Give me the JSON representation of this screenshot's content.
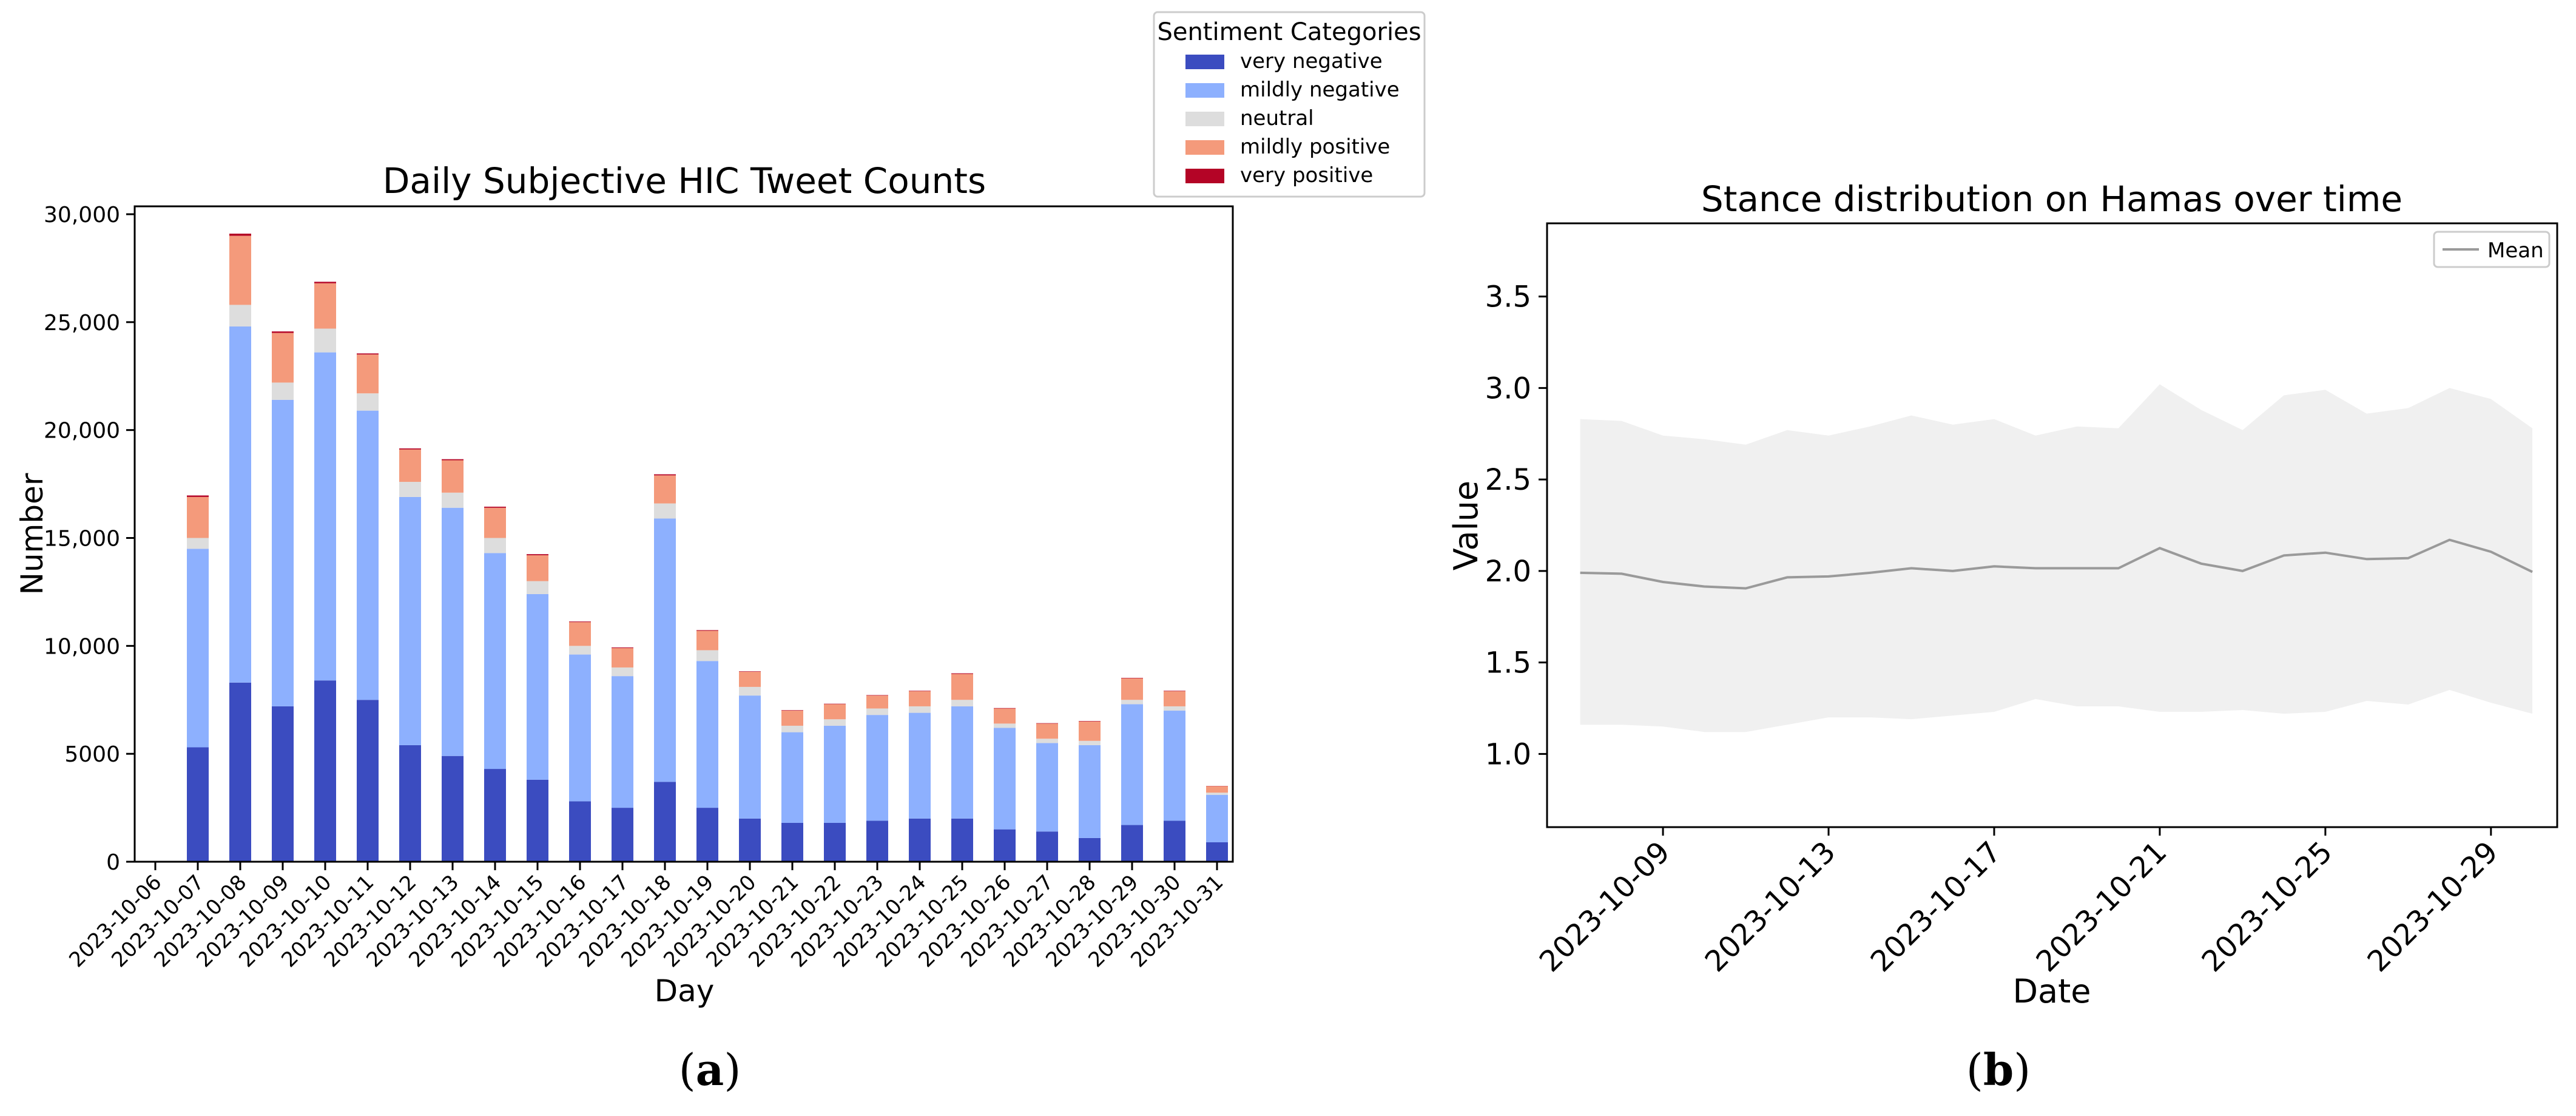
{
  "captions": {
    "a_open": "(",
    "a_letter": "a",
    "a_close": ")",
    "b_open": "(",
    "b_letter": "b",
    "b_close": ")"
  },
  "colors": {
    "very_negative": "#3b4cc0",
    "mildly_negative": "#8db0fe",
    "neutral": "#dddddd",
    "mildly_positive": "#f49a7b",
    "very_positive": "#b40426",
    "mean_line": "#9a9a9a",
    "band": "#f0f0f0"
  },
  "chart_data": [
    {
      "type": "bar",
      "stacked": true,
      "title": "Daily Subjective HIC Tweet Counts",
      "xlabel": "Day",
      "ylabel": "Number",
      "ylim": [
        0,
        30000
      ],
      "yticks": [
        "0",
        "5000",
        "10,000",
        "15,000",
        "20,000",
        "25,000",
        "30,000"
      ],
      "legend": {
        "title": "Sentiment Categories",
        "placement": "top-center-outside"
      },
      "categories": [
        "2023-10-06",
        "2023-10-07",
        "2023-10-08",
        "2023-10-09",
        "2023-10-10",
        "2023-10-11",
        "2023-10-12",
        "2023-10-13",
        "2023-10-14",
        "2023-10-15",
        "2023-10-16",
        "2023-10-17",
        "2023-10-18",
        "2023-10-19",
        "2023-10-20",
        "2023-10-21",
        "2023-10-22",
        "2023-10-23",
        "2023-10-24",
        "2023-10-25",
        "2023-10-26",
        "2023-10-27",
        "2023-10-28",
        "2023-10-29",
        "2023-10-30",
        "2023-10-31"
      ],
      "series": [
        {
          "name": "very negative",
          "color_key": "very_negative",
          "values": [
            0,
            5300,
            8300,
            7200,
            8400,
            7500,
            5400,
            4900,
            4300,
            3800,
            2800,
            2500,
            3700,
            2500,
            2000,
            1800,
            1800,
            1900,
            2000,
            2000,
            1500,
            1400,
            1100,
            1700,
            1900,
            900
          ]
        },
        {
          "name": "mildly negative",
          "color_key": "mildly_negative",
          "values": [
            0,
            9200,
            16500,
            14200,
            15200,
            13400,
            11500,
            11500,
            10000,
            8600,
            6800,
            6100,
            12200,
            6800,
            5700,
            4200,
            4500,
            4900,
            4900,
            5200,
            4700,
            4100,
            4300,
            5600,
            5100,
            2200
          ]
        },
        {
          "name": "neutral",
          "color_key": "neutral",
          "values": [
            0,
            500,
            1000,
            800,
            1100,
            800,
            700,
            700,
            700,
            600,
            400,
            400,
            700,
            500,
            400,
            300,
            300,
            300,
            300,
            300,
            200,
            200,
            200,
            200,
            200,
            100
          ]
        },
        {
          "name": "mildly positive",
          "color_key": "mildly_positive",
          "values": [
            0,
            1900,
            3200,
            2300,
            2100,
            1800,
            1500,
            1500,
            1400,
            1200,
            1100,
            900,
            1300,
            900,
            700,
            700,
            700,
            600,
            700,
            1200,
            700,
            700,
            900,
            1000,
            700,
            300
          ]
        },
        {
          "name": "very positive",
          "color_key": "very_positive",
          "values": [
            0,
            70,
            100,
            70,
            70,
            50,
            50,
            50,
            50,
            50,
            30,
            30,
            50,
            30,
            20,
            20,
            20,
            20,
            20,
            30,
            20,
            20,
            20,
            20,
            20,
            10
          ]
        }
      ]
    },
    {
      "type": "line",
      "title": "Stance distribution on Hamas over time",
      "xlabel": "Date",
      "ylabel": "Value",
      "ylim": [
        0.6,
        3.9
      ],
      "yticks": [
        "1.0",
        "1.5",
        "2.0",
        "2.5",
        "3.0",
        "3.5"
      ],
      "xticks": [
        "2023-10-09",
        "2023-10-13",
        "2023-10-17",
        "2023-10-21",
        "2023-10-25",
        "2023-10-29"
      ],
      "xtick_days": [
        9,
        13,
        17,
        21,
        25,
        29
      ],
      "xlim_days": [
        6.2,
        30.6
      ],
      "legend": {
        "placement": "top-right",
        "entries": [
          "Mean"
        ]
      },
      "series": [
        {
          "name": "Mean",
          "x_days": [
            7,
            8,
            9,
            10,
            11,
            12,
            13,
            14,
            15,
            16,
            17,
            18,
            19,
            20,
            21,
            22,
            23,
            24,
            25,
            26,
            27,
            28,
            29,
            30
          ],
          "mean": [
            1.99,
            1.985,
            1.94,
            1.915,
            1.905,
            1.965,
            1.97,
            1.99,
            2.015,
            2.0,
            2.025,
            2.015,
            2.015,
            2.015,
            2.125,
            2.04,
            2.0,
            2.085,
            2.1,
            2.065,
            2.07,
            2.17,
            2.105,
            1.995
          ],
          "upper": [
            2.83,
            2.82,
            2.74,
            2.72,
            2.69,
            2.77,
            2.74,
            2.79,
            2.85,
            2.8,
            2.83,
            2.74,
            2.79,
            2.78,
            3.02,
            2.88,
            2.77,
            2.96,
            2.99,
            2.86,
            2.89,
            3.0,
            2.94,
            2.78
          ],
          "lower": [
            1.16,
            1.16,
            1.15,
            1.12,
            1.12,
            1.16,
            1.2,
            1.2,
            1.19,
            1.21,
            1.23,
            1.3,
            1.26,
            1.26,
            1.23,
            1.23,
            1.24,
            1.22,
            1.23,
            1.29,
            1.27,
            1.35,
            1.28,
            1.22
          ]
        }
      ]
    }
  ]
}
